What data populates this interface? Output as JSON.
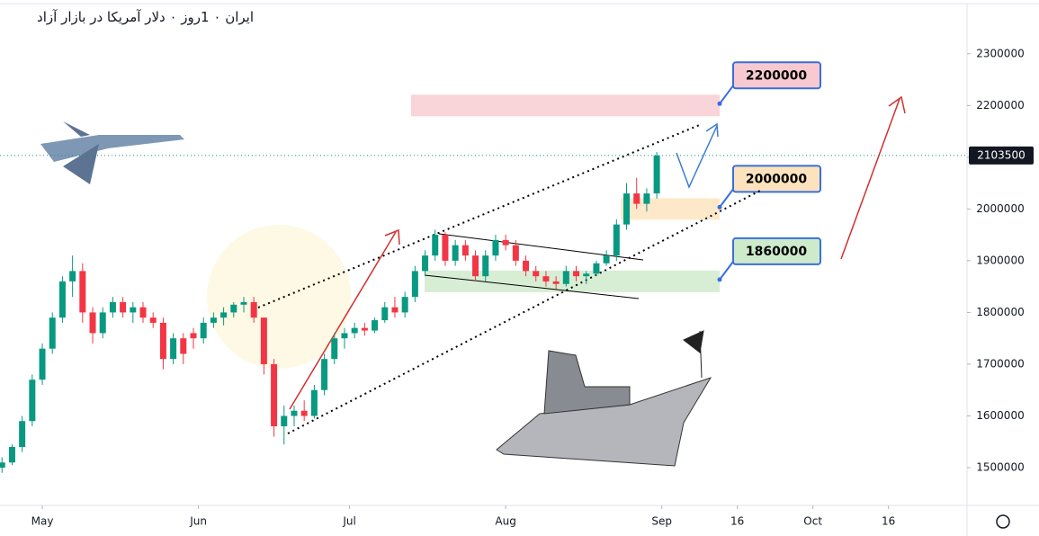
{
  "chart_data": {
    "type": "candlestick",
    "title": "ایران ۰ 1روز ۰ دلار آمریکا در بازار آزاد",
    "up_color": "#089981",
    "down_color": "#f23645",
    "candles": [
      [
        -8,
        1500000,
        1520000,
        1490000,
        1510000
      ],
      [
        -6,
        1510000,
        1545000,
        1505000,
        1540000
      ],
      [
        -4,
        1540000,
        1600000,
        1530000,
        1590000
      ],
      [
        -2,
        1590000,
        1680000,
        1580000,
        1670000
      ],
      [
        0,
        1670000,
        1740000,
        1660000,
        1730000
      ],
      [
        2,
        1730000,
        1800000,
        1720000,
        1790000
      ],
      [
        4,
        1790000,
        1870000,
        1780000,
        1860000
      ],
      [
        6,
        1860000,
        1910000,
        1830000,
        1880000
      ],
      [
        8,
        1880000,
        1895000,
        1780000,
        1800000
      ],
      [
        10,
        1800000,
        1810000,
        1740000,
        1760000
      ],
      [
        12,
        1760000,
        1810000,
        1750000,
        1800000
      ],
      [
        14,
        1800000,
        1830000,
        1790000,
        1820000
      ],
      [
        16,
        1820000,
        1830000,
        1790000,
        1800000
      ],
      [
        18,
        1800000,
        1820000,
        1780000,
        1810000
      ],
      [
        20,
        1810000,
        1820000,
        1780000,
        1790000
      ],
      [
        22,
        1790000,
        1800000,
        1770000,
        1780000
      ],
      [
        24,
        1780000,
        1790000,
        1690000,
        1710000
      ],
      [
        26,
        1710000,
        1760000,
        1700000,
        1750000
      ],
      [
        28,
        1750000,
        1760000,
        1700000,
        1720000
      ],
      [
        30,
        1760000,
        1770000,
        1730000,
        1750000
      ],
      [
        32,
        1750000,
        1790000,
        1740000,
        1780000
      ],
      [
        34,
        1780000,
        1800000,
        1770000,
        1790000
      ],
      [
        36,
        1790000,
        1810000,
        1775000,
        1800000
      ],
      [
        38,
        1800000,
        1820000,
        1790000,
        1815000
      ],
      [
        40,
        1815000,
        1830000,
        1800000,
        1820000
      ],
      [
        42,
        1820000,
        1830000,
        1780000,
        1790000
      ],
      [
        44,
        1790000,
        1790000,
        1680000,
        1700000
      ],
      [
        46,
        1700000,
        1710000,
        1560000,
        1580000
      ],
      [
        48,
        1580000,
        1620000,
        1545000,
        1600000
      ],
      [
        50,
        1600000,
        1620000,
        1580000,
        1610000
      ],
      [
        52,
        1610000,
        1630000,
        1590000,
        1600000
      ],
      [
        54,
        1600000,
        1660000,
        1595000,
        1650000
      ],
      [
        56,
        1650000,
        1720000,
        1640000,
        1710000
      ],
      [
        58,
        1710000,
        1760000,
        1700000,
        1750000
      ],
      [
        60,
        1750000,
        1770000,
        1730000,
        1760000
      ],
      [
        62,
        1760000,
        1780000,
        1750000,
        1770000
      ],
      [
        64,
        1770000,
        1780000,
        1755000,
        1765000
      ],
      [
        66,
        1765000,
        1790000,
        1760000,
        1785000
      ],
      [
        68,
        1785000,
        1820000,
        1780000,
        1810000
      ],
      [
        70,
        1810000,
        1830000,
        1790000,
        1800000
      ],
      [
        72,
        1800000,
        1840000,
        1790000,
        1830000
      ],
      [
        74,
        1830000,
        1890000,
        1820000,
        1880000
      ],
      [
        76,
        1880000,
        1920000,
        1870000,
        1910000
      ],
      [
        78,
        1910000,
        1960000,
        1900000,
        1950000
      ],
      [
        80,
        1950000,
        1955000,
        1890000,
        1900000
      ],
      [
        82,
        1900000,
        1940000,
        1890000,
        1930000
      ],
      [
        84,
        1930000,
        1940000,
        1900000,
        1910000
      ],
      [
        86,
        1910000,
        1920000,
        1860000,
        1870000
      ],
      [
        88,
        1870000,
        1920000,
        1860000,
        1910000
      ],
      [
        90,
        1910000,
        1950000,
        1900000,
        1940000
      ],
      [
        92,
        1940000,
        1950000,
        1920000,
        1930000
      ],
      [
        94,
        1930000,
        1940000,
        1890000,
        1900000
      ],
      [
        96,
        1900000,
        1910000,
        1870000,
        1880000
      ],
      [
        98,
        1880000,
        1890000,
        1860000,
        1870000
      ],
      [
        100,
        1870000,
        1880000,
        1850000,
        1860000
      ],
      [
        102,
        1860000,
        1870000,
        1845000,
        1855000
      ],
      [
        104,
        1855000,
        1890000,
        1850000,
        1880000
      ],
      [
        106,
        1880000,
        1890000,
        1860000,
        1870000
      ],
      [
        108,
        1870000,
        1880000,
        1855000,
        1875000
      ],
      [
        110,
        1875000,
        1900000,
        1870000,
        1895000
      ],
      [
        112,
        1895000,
        1920000,
        1890000,
        1910000
      ],
      [
        114,
        1910000,
        1980000,
        1900000,
        1970000
      ],
      [
        116,
        1970000,
        2050000,
        1960000,
        2030000
      ],
      [
        118,
        2030000,
        2060000,
        2000000,
        2010000
      ],
      [
        120,
        2010000,
        2040000,
        1995000,
        2030000
      ],
      [
        122,
        2030000,
        2110000,
        2020000,
        2103500
      ]
    ],
    "last_price": 2103500,
    "levels": [
      2200000,
      2000000,
      1860000
    ],
    "level_colors": [
      "#f8c9d0",
      "#fde3bd",
      "#cdeacb"
    ],
    "ylim": [
      1427000,
      2390000
    ],
    "yticks": [
      1500000,
      1600000,
      1700000,
      1800000,
      1900000,
      2000000,
      2100000,
      2200000,
      2300000
    ],
    "xlim": [
      -8.4,
      183.6
    ],
    "xticks": [
      {
        "value": 0,
        "label": "May"
      },
      {
        "value": 31,
        "label": "Jun"
      },
      {
        "value": 61,
        "label": "Jul"
      },
      {
        "value": 92,
        "label": "Aug"
      },
      {
        "value": 123,
        "label": "Sep"
      },
      {
        "value": 138,
        "label": "16"
      },
      {
        "value": 153,
        "label": "Oct"
      },
      {
        "value": 168,
        "label": "16"
      }
    ]
  }
}
